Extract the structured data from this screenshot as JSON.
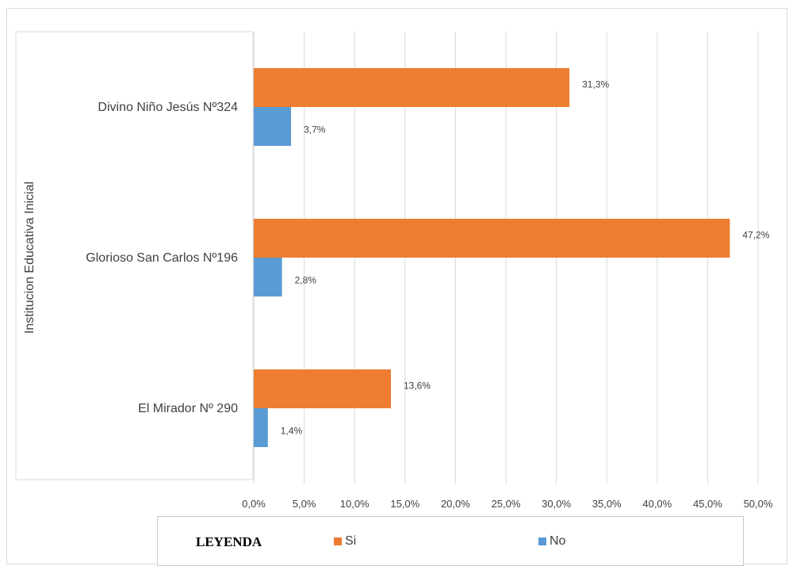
{
  "chart_data": {
    "type": "bar",
    "orientation": "horizontal",
    "categories": [
      "Divino Niño Jesús Nº324",
      "Glorioso San Carlos Nº196",
      "El Mirador Nº 290"
    ],
    "series": [
      {
        "name": "Si",
        "values": [
          31.3,
          47.2,
          13.6
        ],
        "labels": [
          "31,3%",
          "47,2%",
          "13,6%"
        ],
        "color": "#ed7d31"
      },
      {
        "name": "No",
        "values": [
          3.7,
          2.8,
          1.4
        ],
        "labels": [
          "3,7%",
          "2,8%",
          "1,4%"
        ],
        "color": "#5b9bd5"
      }
    ],
    "ylabel": "Institucion Educativa Inicial",
    "xlim": [
      0,
      50
    ],
    "xticks": [
      "0,0%",
      "5,0%",
      "10,0%",
      "15,0%",
      "20,0%",
      "25,0%",
      "30,0%",
      "35,0%",
      "40,0%",
      "45,0%",
      "50,0%"
    ],
    "grid": true,
    "legend_position": "bottom"
  },
  "legend": {
    "title": "LEYENDA",
    "items": [
      "Si",
      "No"
    ]
  }
}
